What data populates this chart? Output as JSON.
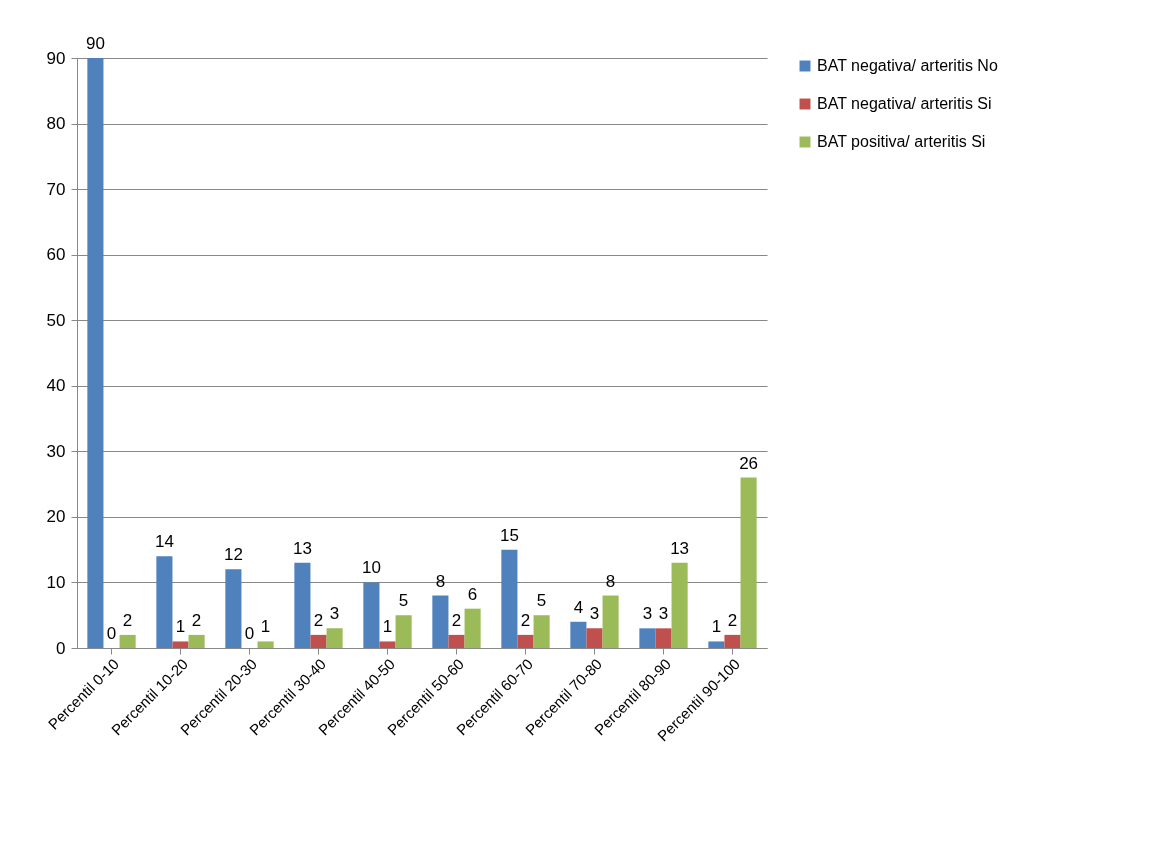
{
  "chart_data": {
    "type": "bar",
    "categories": [
      "Percentil 0-10",
      "Percentil 10-20",
      "Percentil 20-30",
      "Percentil 30-40",
      "Percentil 40-50",
      "Percentil 50-60",
      "Percentil 60-70",
      "Percentil 70-80",
      "Percentil 80-90",
      "Percentil 90-100"
    ],
    "series": [
      {
        "name": "BAT negativa/ arteritis No",
        "color": "#4f81bd",
        "values": [
          90,
          14,
          12,
          13,
          10,
          8,
          15,
          4,
          3,
          1
        ]
      },
      {
        "name": "BAT negativa/ arteritis Si",
        "color": "#c0504d",
        "values": [
          0,
          1,
          0,
          2,
          1,
          2,
          2,
          3,
          3,
          2
        ]
      },
      {
        "name": "BAT positiva/ arteritis Si",
        "color": "#9bbb59",
        "values": [
          2,
          2,
          1,
          3,
          5,
          6,
          5,
          8,
          13,
          26
        ]
      }
    ],
    "ylim": [
      0,
      90
    ],
    "yticks": [
      0,
      10,
      20,
      30,
      40,
      50,
      60,
      70,
      80,
      90
    ],
    "grid": "y",
    "legend": "right",
    "data_labels": true
  }
}
